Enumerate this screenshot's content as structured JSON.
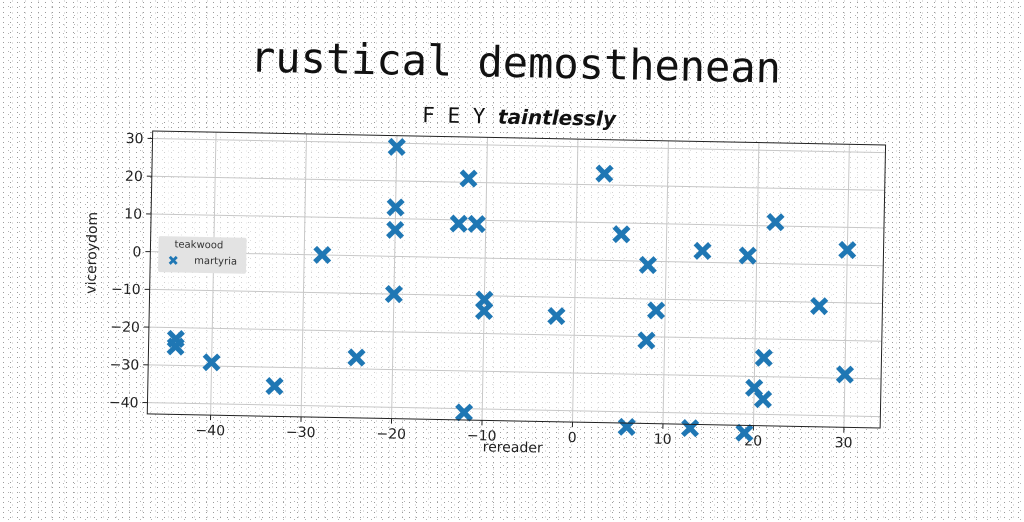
{
  "chart_data": {
    "type": "scatter",
    "suptitle": "rustical demosthenean",
    "title_prefix": "F E Y",
    "title_suffix": "taintlessly",
    "xlabel": "rereader",
    "ylabel": "viceroydom",
    "xlim": [
      -47,
      34
    ],
    "ylim": [
      -43,
      32
    ],
    "xticks": [
      -40,
      -30,
      -20,
      -10,
      0,
      10,
      20,
      30
    ],
    "yticks": [
      -40,
      -30,
      -20,
      -10,
      0,
      10,
      20,
      30
    ],
    "grid": true,
    "legend": {
      "title": "teakwood",
      "placement": "center-left"
    },
    "series": [
      {
        "name": "martyria",
        "color": "#1f77b4",
        "marker": "X",
        "points": [
          [
            -44,
            -23
          ],
          [
            -44,
            -25
          ],
          [
            -40,
            -29
          ],
          [
            -33,
            -35
          ],
          [
            -28,
            0
          ],
          [
            -24,
            -27
          ],
          [
            -20,
            29
          ],
          [
            -20,
            7
          ],
          [
            -20,
            13
          ],
          [
            -20,
            -10
          ],
          [
            -13,
            9
          ],
          [
            -12,
            21
          ],
          [
            -11,
            9
          ],
          [
            -12,
            -41
          ],
          [
            -10,
            -11
          ],
          [
            -10,
            -14
          ],
          [
            -2,
            -15
          ],
          [
            3,
            23
          ],
          [
            5,
            7
          ],
          [
            6,
            -44
          ],
          [
            8,
            -21
          ],
          [
            8,
            -1
          ],
          [
            9,
            -13
          ],
          [
            13,
            -44
          ],
          [
            14,
            3
          ],
          [
            19,
            2
          ],
          [
            19,
            -45
          ],
          [
            20,
            -33
          ],
          [
            21,
            -25
          ],
          [
            21,
            -36
          ],
          [
            22,
            11
          ],
          [
            27,
            -11
          ],
          [
            30,
            4
          ],
          [
            30,
            -29
          ]
        ]
      }
    ]
  }
}
